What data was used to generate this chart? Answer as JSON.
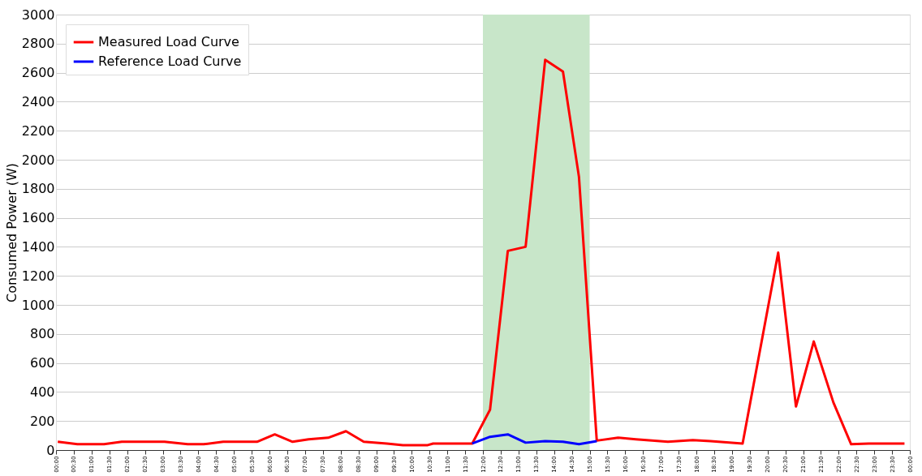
{
  "chart_data": {
    "type": "line",
    "ylabel": "Consumed Power (W)",
    "series": [
      {
        "name": "Measured Load Curve",
        "color": "#ff0000",
        "x": [
          0.05,
          0.6,
          1.35,
          1.85,
          3.05,
          3.7,
          4.15,
          4.7,
          5.65,
          6.15,
          6.65,
          7.1,
          7.65,
          8.15,
          8.65,
          9.3,
          9.75,
          10.45,
          10.6,
          11.7,
          12.2,
          12.7,
          13.2,
          13.75,
          14.25,
          14.7,
          15.2,
          15.8,
          16.3,
          17.2,
          17.9,
          18.4,
          19.3,
          20.3,
          20.8,
          21.3,
          21.85,
          22.35,
          22.85,
          23.85
        ],
        "values": [
          57,
          40,
          40,
          57,
          57,
          40,
          40,
          57,
          57,
          108,
          57,
          74,
          85,
          130,
          57,
          45,
          34,
          34,
          45,
          45,
          278,
          1372,
          1400,
          2688,
          2608,
          1882,
          65,
          85,
          74,
          57,
          68,
          62,
          45,
          1360,
          300,
          748,
          329,
          40,
          45,
          45
        ]
      },
      {
        "name": "Reference Load Curve",
        "color": "#0000ff",
        "x": [
          11.7,
          12.2,
          12.7,
          13.2,
          13.75,
          14.25,
          14.7,
          15.2
        ],
        "values": [
          45,
          91,
          108,
          51,
          62,
          57,
          40,
          62
        ]
      }
    ],
    "xlim": [
      0,
      24
    ],
    "xticks": [
      {
        "value": 0,
        "label": "00:00"
      },
      {
        "value": 0.5,
        "label": "00:30"
      },
      {
        "value": 1,
        "label": "01:00"
      },
      {
        "value": 1.5,
        "label": "01:30"
      },
      {
        "value": 2,
        "label": "02:00"
      },
      {
        "value": 2.5,
        "label": "02:30"
      },
      {
        "value": 3,
        "label": "03:00"
      },
      {
        "value": 3.5,
        "label": "03:30"
      },
      {
        "value": 4,
        "label": "04:00"
      },
      {
        "value": 4.5,
        "label": "04:30"
      },
      {
        "value": 5,
        "label": "05:00"
      },
      {
        "value": 5.5,
        "label": "05:30"
      },
      {
        "value": 6,
        "label": "06:00"
      },
      {
        "value": 6.5,
        "label": "06:30"
      },
      {
        "value": 7,
        "label": "07:00"
      },
      {
        "value": 7.5,
        "label": "07:30"
      },
      {
        "value": 8,
        "label": "08:00"
      },
      {
        "value": 8.5,
        "label": "08:30"
      },
      {
        "value": 9,
        "label": "09:00"
      },
      {
        "value": 9.5,
        "label": "09:30"
      },
      {
        "value": 10,
        "label": "10:00"
      },
      {
        "value": 10.5,
        "label": "10:30"
      },
      {
        "value": 11,
        "label": "11:00"
      },
      {
        "value": 11.5,
        "label": "11:30"
      },
      {
        "value": 12,
        "label": "12:00"
      },
      {
        "value": 12.5,
        "label": "12:30"
      },
      {
        "value": 13,
        "label": "13:00"
      },
      {
        "value": 13.5,
        "label": "13:30"
      },
      {
        "value": 14,
        "label": "14:00"
      },
      {
        "value": 14.5,
        "label": "14:30"
      },
      {
        "value": 15,
        "label": "15:00"
      },
      {
        "value": 15.5,
        "label": "15:30"
      },
      {
        "value": 16,
        "label": "16:00"
      },
      {
        "value": 16.5,
        "label": "16:30"
      },
      {
        "value": 17,
        "label": "17:00"
      },
      {
        "value": 17.5,
        "label": "17:30"
      },
      {
        "value": 18,
        "label": "18:00"
      },
      {
        "value": 18.5,
        "label": "18:30"
      },
      {
        "value": 19,
        "label": "19:00"
      },
      {
        "value": 19.5,
        "label": "19:30"
      },
      {
        "value": 20,
        "label": "20:00"
      },
      {
        "value": 20.5,
        "label": "20:30"
      },
      {
        "value": 21,
        "label": "21:00"
      },
      {
        "value": 21.5,
        "label": "21:30"
      },
      {
        "value": 22,
        "label": "22:00"
      },
      {
        "value": 22.5,
        "label": "22:30"
      },
      {
        "value": 23,
        "label": "23:00"
      },
      {
        "value": 23.5,
        "label": "23:30"
      },
      {
        "value": 24,
        "label": "00:00"
      }
    ],
    "ylim": [
      0,
      3000
    ],
    "yticks": [
      0,
      200,
      400,
      600,
      800,
      1000,
      1200,
      1400,
      1600,
      1800,
      2000,
      2200,
      2400,
      2600,
      2800,
      3000
    ],
    "bands": [
      {
        "axis": "x",
        "from": 12,
        "to": 15,
        "color": "#c8e6c9"
      }
    ],
    "grid": "y",
    "legend": "top left",
    "marker": "none",
    "line_style": "solid"
  }
}
